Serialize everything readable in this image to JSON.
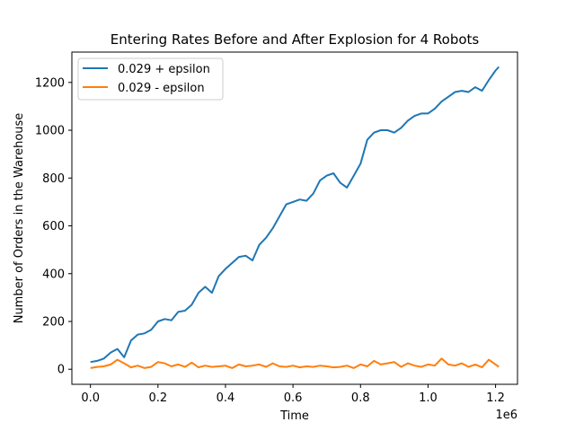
{
  "chart_data": {
    "type": "line",
    "title": "Entering Rates Before and After Explosion for 4 Robots",
    "xlabel": "Time",
    "ylabel": "Number of Orders in the Warehouse",
    "x_offset_label": "1e6",
    "xlim": [
      -0.055,
      1.265
    ],
    "ylim": [
      -63,
      1327
    ],
    "x_scale_multiplier": 1000000,
    "xticks": [
      0.0,
      0.2,
      0.4,
      0.6,
      0.8,
      1.0,
      1.2
    ],
    "xtick_labels": [
      "0.0",
      "0.2",
      "0.4",
      "0.6",
      "0.8",
      "1.0",
      "1.2"
    ],
    "yticks": [
      0,
      200,
      400,
      600,
      800,
      1000,
      1200
    ],
    "ytick_labels": [
      "0",
      "200",
      "400",
      "600",
      "800",
      "1000",
      "1200"
    ],
    "legend_position": "upper-left",
    "series": [
      {
        "name": "0.029 + epsilon",
        "color": "#1f77b4",
        "x": [
          0.0,
          0.02,
          0.04,
          0.06,
          0.08,
          0.1,
          0.12,
          0.14,
          0.16,
          0.18,
          0.2,
          0.22,
          0.24,
          0.26,
          0.28,
          0.3,
          0.32,
          0.34,
          0.36,
          0.38,
          0.4,
          0.42,
          0.44,
          0.46,
          0.48,
          0.5,
          0.52,
          0.54,
          0.56,
          0.58,
          0.6,
          0.62,
          0.64,
          0.66,
          0.68,
          0.7,
          0.72,
          0.74,
          0.76,
          0.78,
          0.8,
          0.82,
          0.84,
          0.86,
          0.88,
          0.9,
          0.92,
          0.94,
          0.96,
          0.98,
          1.0,
          1.02,
          1.04,
          1.06,
          1.08,
          1.1,
          1.12,
          1.14,
          1.16,
          1.18,
          1.2,
          1.21
        ],
        "y": [
          30,
          35,
          45,
          70,
          85,
          50,
          120,
          145,
          150,
          165,
          200,
          210,
          205,
          240,
          245,
          270,
          320,
          345,
          320,
          390,
          420,
          445,
          470,
          475,
          455,
          520,
          550,
          590,
          640,
          690,
          700,
          710,
          705,
          735,
          790,
          810,
          820,
          780,
          760,
          810,
          860,
          960,
          990,
          1000,
          1000,
          990,
          1010,
          1040,
          1060,
          1070,
          1070,
          1090,
          1120,
          1140,
          1160,
          1165,
          1160,
          1180,
          1165,
          1210,
          1250,
          1265
        ]
      },
      {
        "name": "0.029 - epsilon",
        "color": "#ff7f0e",
        "x": [
          0.0,
          0.02,
          0.04,
          0.06,
          0.08,
          0.1,
          0.12,
          0.14,
          0.16,
          0.18,
          0.2,
          0.22,
          0.24,
          0.26,
          0.28,
          0.3,
          0.32,
          0.34,
          0.36,
          0.38,
          0.4,
          0.42,
          0.44,
          0.46,
          0.48,
          0.5,
          0.52,
          0.54,
          0.56,
          0.58,
          0.6,
          0.62,
          0.64,
          0.66,
          0.68,
          0.7,
          0.72,
          0.74,
          0.76,
          0.78,
          0.8,
          0.82,
          0.84,
          0.86,
          0.88,
          0.9,
          0.92,
          0.94,
          0.96,
          0.98,
          1.0,
          1.02,
          1.04,
          1.06,
          1.08,
          1.1,
          1.12,
          1.14,
          1.16,
          1.18,
          1.2,
          1.21
        ],
        "y": [
          5,
          10,
          12,
          20,
          40,
          25,
          8,
          15,
          5,
          10,
          30,
          25,
          12,
          20,
          10,
          28,
          8,
          15,
          10,
          12,
          15,
          5,
          20,
          12,
          15,
          20,
          10,
          25,
          12,
          10,
          15,
          8,
          12,
          10,
          15,
          12,
          8,
          10,
          15,
          5,
          20,
          12,
          35,
          20,
          25,
          30,
          10,
          25,
          15,
          10,
          20,
          15,
          45,
          20,
          15,
          25,
          10,
          20,
          8,
          40,
          20,
          10
        ]
      }
    ]
  }
}
